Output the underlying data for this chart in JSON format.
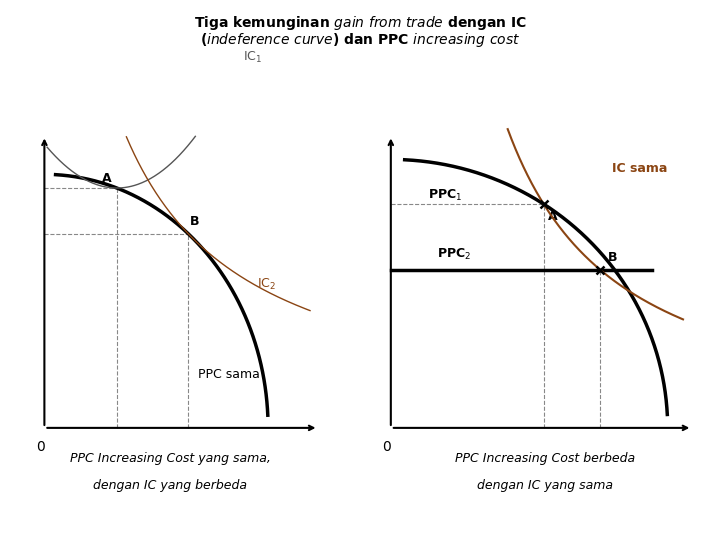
{
  "bg_color": "#ffffff",
  "ppc_color": "#000000",
  "ic1_color": "#555555",
  "ic2_color": "#8B4513",
  "dashed_color": "#888888",
  "title_l1": "Tiga kemunginan $\\it{gain\\ from\\ trade}$ dengan IC",
  "title_l2": "($\\it{indeference\\ curve}$) dan PPC $\\it{increasing\\ cost}$",
  "label1_l1": "PPC Increasing Cost yang sama,",
  "label1_l2": "dengan IC yang berbeda",
  "label2_l1": "PPC Increasing Cost berbeda",
  "label2_l2": "dengan IC yang sama"
}
